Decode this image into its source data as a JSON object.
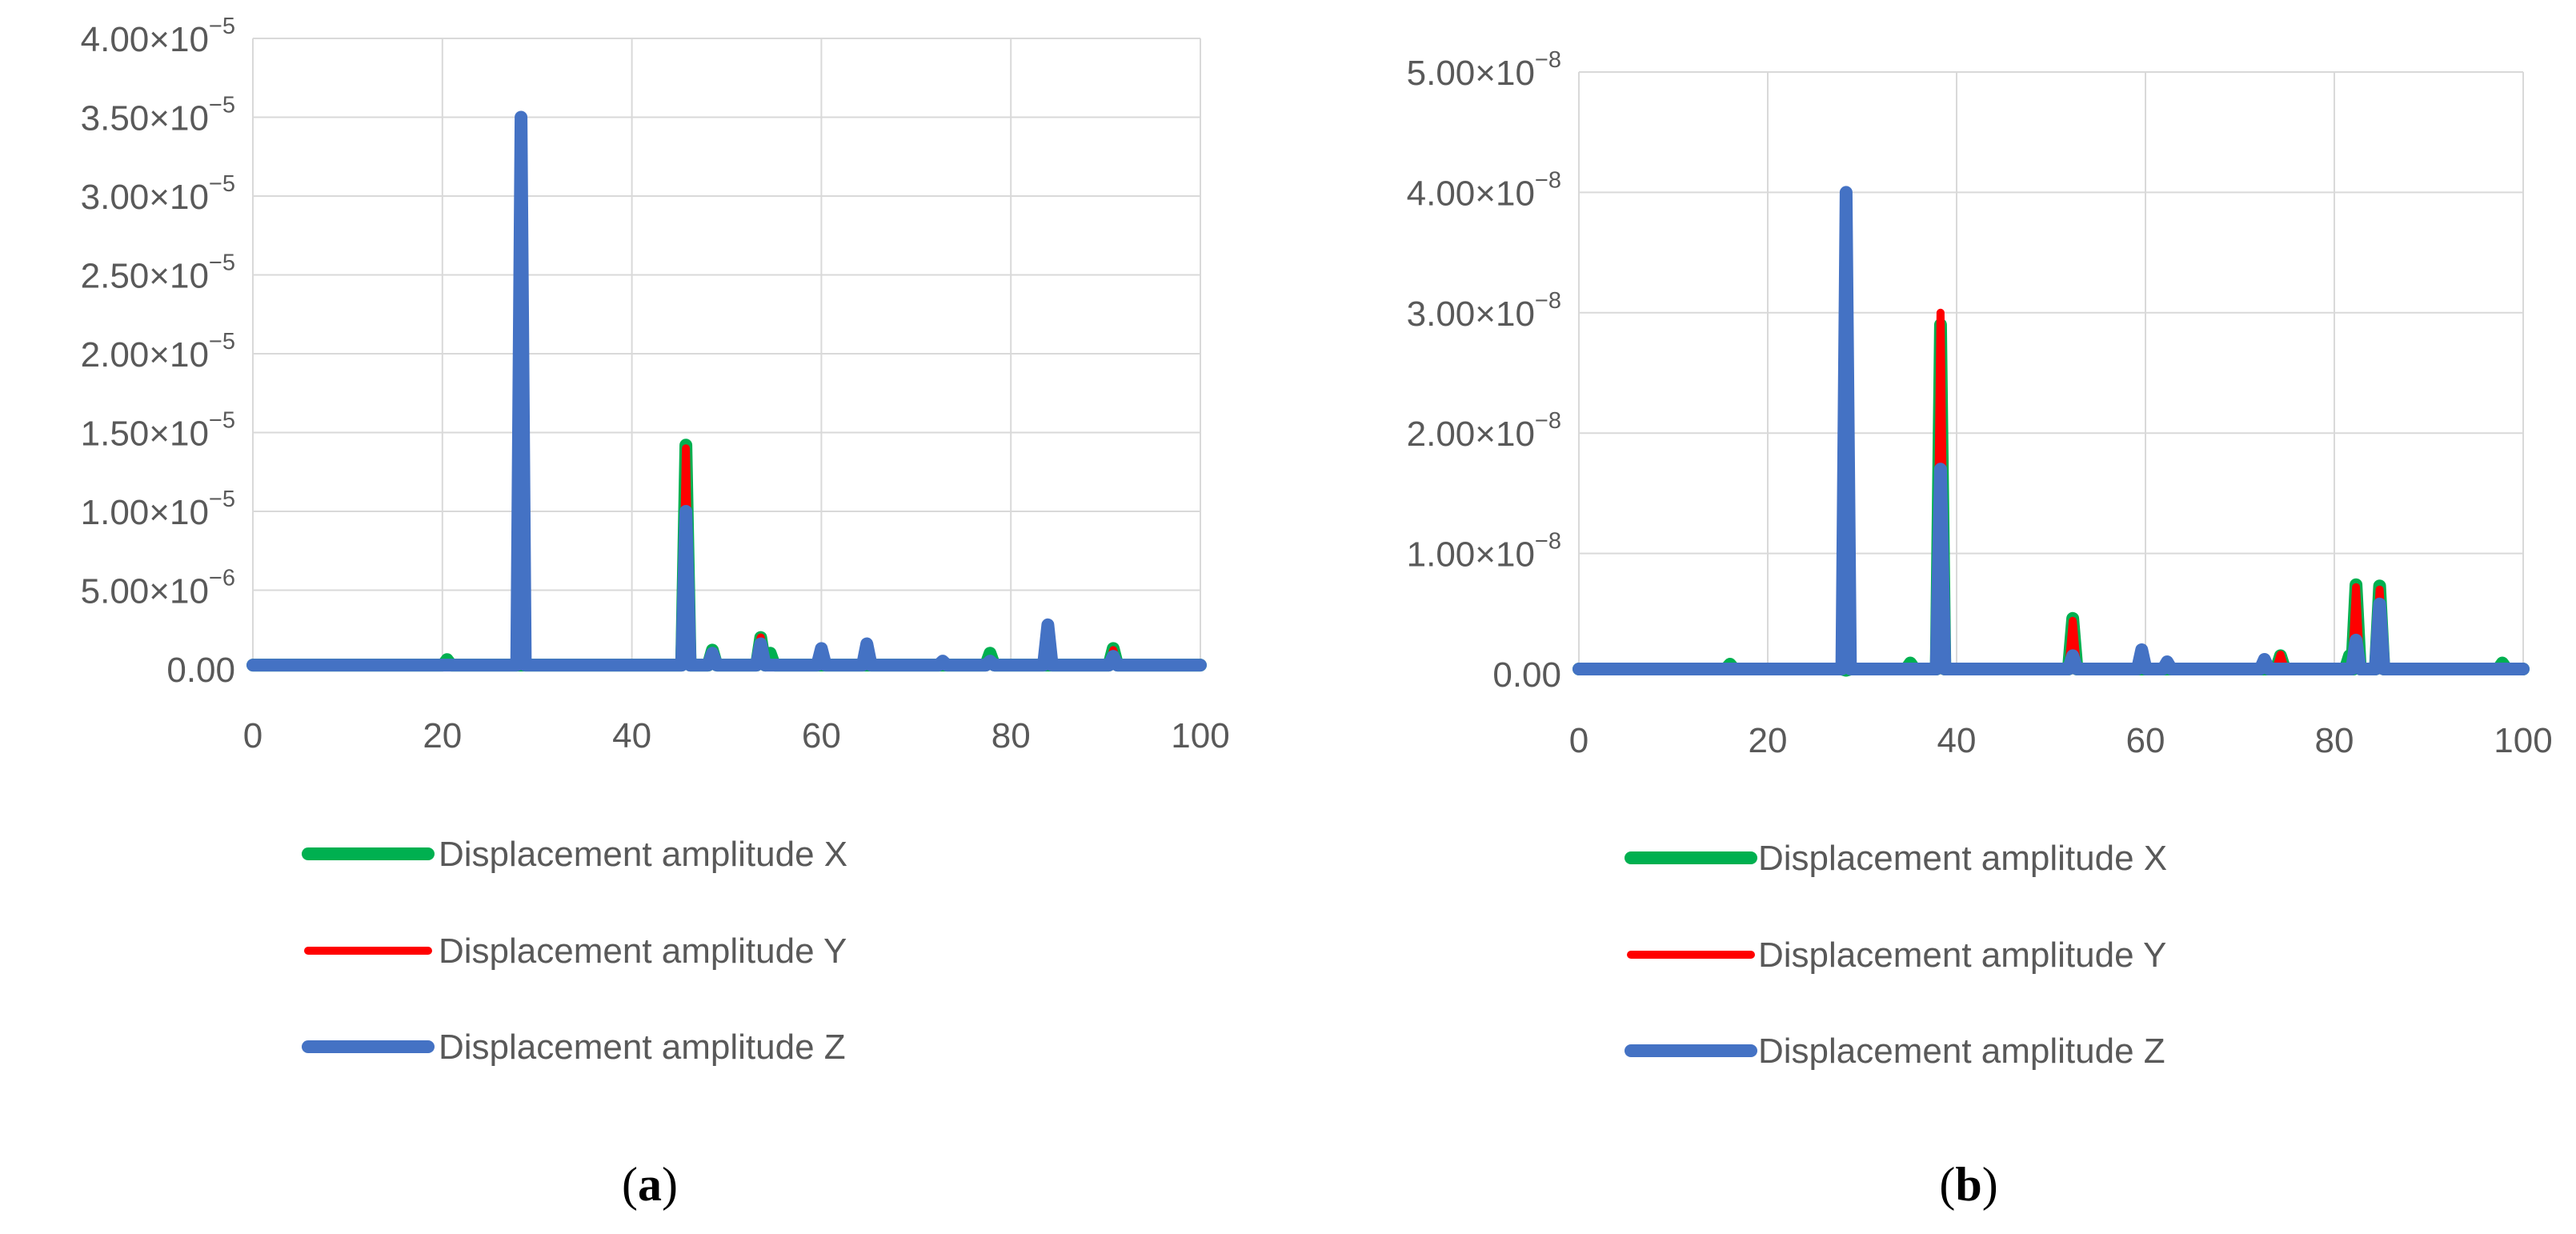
{
  "colors": {
    "x": "#00b050",
    "y": "#ff0000",
    "z": "#4472c4"
  },
  "legend": [
    {
      "key": "x",
      "label": "Displacement amplitude X"
    },
    {
      "key": "y",
      "label": "Displacement amplitude Y"
    },
    {
      "key": "z",
      "label": "Displacement amplitude Z"
    }
  ],
  "chart_data": [
    {
      "type": "line",
      "panel_label": "a",
      "xlim": [
        0,
        100
      ],
      "ylim": [
        0,
        4e-05
      ],
      "xticks": [
        0,
        20,
        40,
        60,
        80,
        100
      ],
      "yticks": [
        {
          "mantissa": "0.00",
          "exp": ""
        },
        {
          "mantissa": "5.00×10",
          "exp": "−6"
        },
        {
          "mantissa": "1.00×10",
          "exp": "−5"
        },
        {
          "mantissa": "1.50×10",
          "exp": "−5"
        },
        {
          "mantissa": "2.00×10",
          "exp": "−5"
        },
        {
          "mantissa": "2.50×10",
          "exp": "−5"
        },
        {
          "mantissa": "3.00×10",
          "exp": "−5"
        },
        {
          "mantissa": "3.50×10",
          "exp": "−5"
        },
        {
          "mantissa": "4.00×10",
          "exp": "−5"
        }
      ],
      "grid": true,
      "legend_position": "bottom",
      "baseline": 2.5e-07,
      "series": [
        {
          "name": "Displacement amplitude X",
          "key": "x",
          "peaks": [
            [
              20.5,
              6e-07
            ],
            [
              45.7,
              1.42e-05
            ],
            [
              48.5,
              1.2e-06
            ],
            [
              53.6,
              2e-06
            ],
            [
              54.6,
              1e-06
            ],
            [
              77.8,
              1e-06
            ],
            [
              90.8,
              1.3e-06
            ]
          ]
        },
        {
          "name": "Displacement amplitude Y",
          "key": "y",
          "peaks": [
            [
              28.3,
              8e-07
            ],
            [
              45.7,
              1.4e-05
            ],
            [
              53.6,
              2e-06
            ],
            [
              90.8,
              1.2e-06
            ]
          ]
        },
        {
          "name": "Displacement amplitude Z",
          "key": "z",
          "peaks": [
            [
              28.3,
              3.5e-05
            ],
            [
              45.7,
              1e-05
            ],
            [
              48.5,
              1e-06
            ],
            [
              53.6,
              1.6e-06
            ],
            [
              60.0,
              1.3e-06
            ],
            [
              64.8,
              1.6e-06
            ],
            [
              72.8,
              5e-07
            ],
            [
              77.8,
              5e-07
            ],
            [
              83.9,
              2.8e-06
            ],
            [
              90.8,
              8e-07
            ]
          ]
        }
      ]
    },
    {
      "type": "line",
      "panel_label": "b",
      "xlim": [
        0,
        100
      ],
      "ylim": [
        0,
        5e-08
      ],
      "xticks": [
        0,
        20,
        40,
        60,
        80,
        100
      ],
      "yticks": [
        {
          "mantissa": "0.00",
          "exp": ""
        },
        {
          "mantissa": "1.00×10",
          "exp": "−8"
        },
        {
          "mantissa": "2.00×10",
          "exp": "−8"
        },
        {
          "mantissa": "3.00×10",
          "exp": "−8"
        },
        {
          "mantissa": "4.00×10",
          "exp": "−8"
        },
        {
          "mantissa": "5.00×10",
          "exp": "−8"
        }
      ],
      "grid": true,
      "legend_position": "bottom",
      "baseline": 4e-10,
      "series": [
        {
          "name": "Displacement amplitude X",
          "key": "x",
          "peaks": [
            [
              16.0,
              8e-10
            ],
            [
              28.3,
              3e-10
            ],
            [
              35.1,
              9e-10
            ],
            [
              38.3,
              2.9e-08
            ],
            [
              52.3,
              4.6e-09
            ],
            [
              74.3,
              1.5e-09
            ],
            [
              81.6,
              1.5e-09
            ],
            [
              82.3,
              7.4e-09
            ],
            [
              84.8,
              7.3e-09
            ],
            [
              97.8,
              9e-10
            ]
          ]
        },
        {
          "name": "Displacement amplitude Y",
          "key": "y",
          "peaks": [
            [
              28.3,
              5e-10
            ],
            [
              38.3,
              3e-08
            ],
            [
              52.3,
              4.4e-09
            ],
            [
              74.3,
              1.6e-09
            ],
            [
              82.3,
              7.2e-09
            ],
            [
              84.8,
              7e-09
            ]
          ]
        },
        {
          "name": "Displacement amplitude Z",
          "key": "z",
          "peaks": [
            [
              28.3,
              4e-08
            ],
            [
              38.3,
              1.7e-08
            ],
            [
              52.3,
              1.5e-09
            ],
            [
              59.6,
              2e-09
            ],
            [
              62.3,
              1e-09
            ],
            [
              72.6,
              1.2e-09
            ],
            [
              82.3,
              2.8e-09
            ],
            [
              84.8,
              5.8e-09
            ]
          ]
        }
      ]
    }
  ]
}
